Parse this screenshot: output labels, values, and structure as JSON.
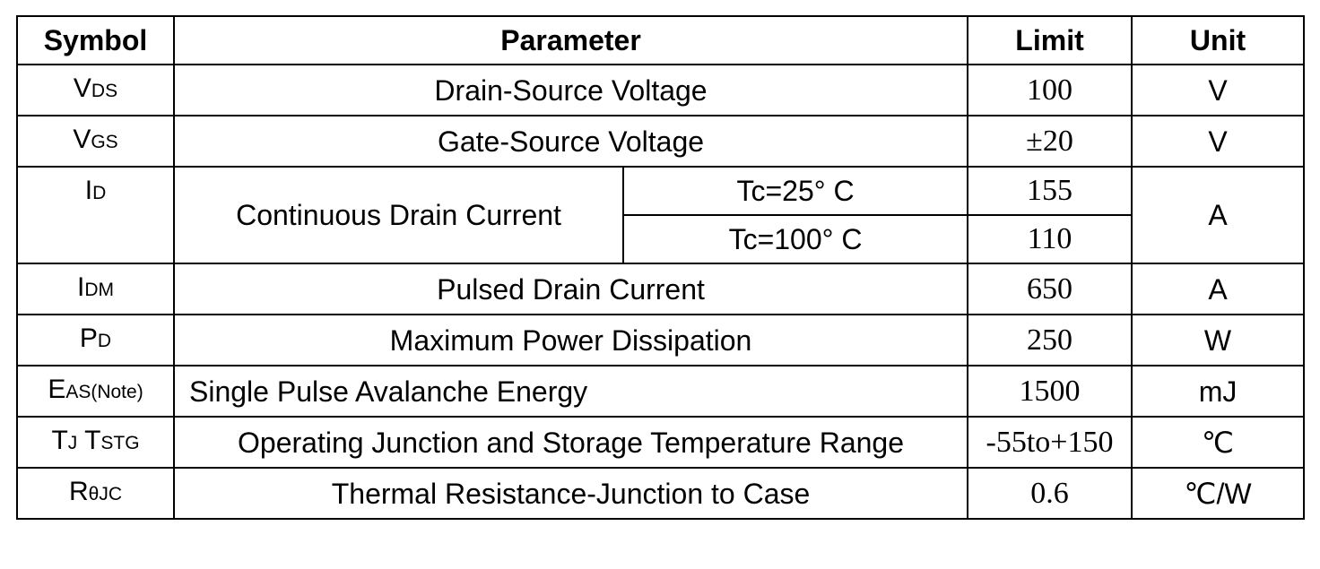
{
  "table": {
    "header": [
      "Symbol",
      "Parameter",
      "Limit",
      "Unit"
    ],
    "rows": [
      {
        "symbol": [
          {
            "main": "V",
            "sub": "DS"
          }
        ],
        "parameter": "Drain-Source Voltage",
        "limit": "100",
        "unit": "V"
      },
      {
        "symbol": [
          {
            "main": "V",
            "sub": "GS"
          }
        ],
        "parameter": "Gate-Source Voltage",
        "limit": "±20",
        "unit": "V"
      },
      {
        "symbol": [
          {
            "main": "I",
            "sub": "D"
          }
        ],
        "parameter": "Continuous Drain Current",
        "conditions": [
          {
            "condition": "Tc=25° C",
            "limit": "155"
          },
          {
            "condition": "Tc=100° C",
            "limit": "110"
          }
        ],
        "unit": "A"
      },
      {
        "symbol": [
          {
            "main": "I",
            "sub": "DM"
          }
        ],
        "parameter": "Pulsed Drain Current",
        "limit": "650",
        "unit": "A"
      },
      {
        "symbol": [
          {
            "main": "P",
            "sub": "D"
          }
        ],
        "parameter": "Maximum Power Dissipation",
        "limit": "250",
        "unit": "W"
      },
      {
        "symbol": [
          {
            "main": "E",
            "sub": "AS(Note)"
          }
        ],
        "parameter": "Single Pulse Avalanche Energy",
        "limit": "1500",
        "unit": "mJ"
      },
      {
        "symbol": [
          {
            "main": "T",
            "sub": "J"
          },
          {
            "main": "T",
            "sub": "STG"
          }
        ],
        "parameter": "Operating Junction and Storage Temperature Range",
        "limit": "-55to+150",
        "unit": "℃"
      },
      {
        "symbol": [
          {
            "main": "R",
            "sub": "θJC"
          }
        ],
        "parameter": "Thermal Resistance-Junction to Case",
        "limit": "0.6",
        "unit": "℃/W"
      }
    ]
  }
}
